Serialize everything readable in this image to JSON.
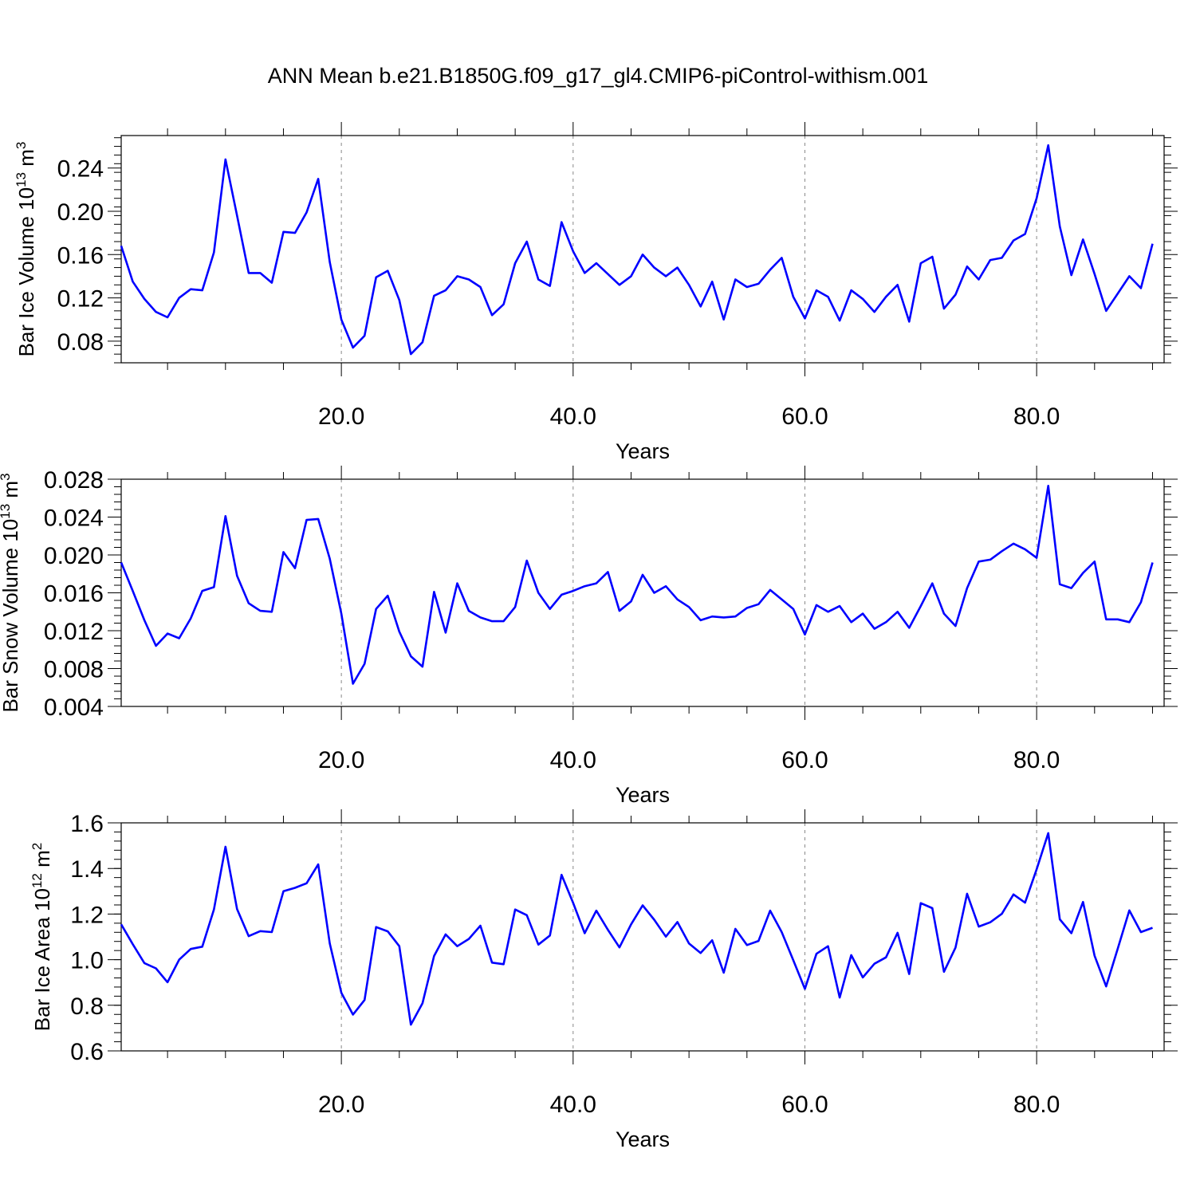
{
  "title": "ANN Mean b.e21.B1850G.f09_g17_gl4.CMIP6-piControl-withism.001",
  "colors": {
    "line": "#0000ff",
    "axis": "#000000",
    "grid": "#888888"
  },
  "chart_data": [
    {
      "type": "line",
      "ylabel": {
        "text": "Bar Ice Volume 10",
        "sup": "13",
        "unit": " m",
        "unit_sup": "3"
      },
      "xlabel": "Years",
      "xlim": [
        1,
        91
      ],
      "ylim": [
        0.06,
        0.27
      ],
      "xticks": [
        20,
        40,
        60,
        80
      ],
      "xtick_labels": [
        "20.0",
        "40.0",
        "60.0",
        "80.0"
      ],
      "yticks": [
        0.08,
        0.12,
        0.16,
        0.2,
        0.24
      ],
      "ytick_labels": [
        "0.08",
        "0.12",
        "0.16",
        "0.20",
        "0.24"
      ],
      "grid": "dashed vertical at x ticks",
      "series": [
        {
          "x_start": 1,
          "values": [
            0.168,
            0.135,
            0.119,
            0.107,
            0.102,
            0.12,
            0.128,
            0.127,
            0.162,
            0.248,
            0.196,
            0.143,
            0.143,
            0.134,
            0.181,
            0.18,
            0.199,
            0.23,
            0.153,
            0.1,
            0.074,
            0.085,
            0.139,
            0.145,
            0.118,
            0.068,
            0.079,
            0.122,
            0.127,
            0.14,
            0.137,
            0.13,
            0.104,
            0.114,
            0.152,
            0.172,
            0.137,
            0.131,
            0.19,
            0.163,
            0.143,
            0.152,
            0.142,
            0.132,
            0.14,
            0.16,
            0.148,
            0.14,
            0.148,
            0.132,
            0.112,
            0.135,
            0.1,
            0.137,
            0.13,
            0.133,
            0.146,
            0.157,
            0.121,
            0.101,
            0.127,
            0.121,
            0.099,
            0.127,
            0.119,
            0.107,
            0.121,
            0.132,
            0.098,
            0.152,
            0.158,
            0.11,
            0.123,
            0.149,
            0.137,
            0.155,
            0.157,
            0.173,
            0.179,
            0.212,
            0.261,
            0.186,
            0.141,
            0.174,
            0.142,
            0.108,
            0.124,
            0.14,
            0.129,
            0.17
          ]
        }
      ]
    },
    {
      "type": "line",
      "ylabel": {
        "text": "Bar Snow Volume 10",
        "sup": "13",
        "unit": " m",
        "unit_sup": "3"
      },
      "xlabel": "Years",
      "xlim": [
        1,
        91
      ],
      "ylim": [
        0.004,
        0.028
      ],
      "xticks": [
        20,
        40,
        60,
        80
      ],
      "xtick_labels": [
        "20.0",
        "40.0",
        "60.0",
        "80.0"
      ],
      "yticks": [
        0.004,
        0.008,
        0.012,
        0.016,
        0.02,
        0.024,
        0.028
      ],
      "ytick_labels": [
        "0.004",
        "0.008",
        "0.012",
        "0.016",
        "0.020",
        "0.024",
        "0.028"
      ],
      "grid": "dashed vertical at x ticks",
      "series": [
        {
          "x_start": 1,
          "values": [
            0.0192,
            0.0162,
            0.0131,
            0.0104,
            0.0117,
            0.0112,
            0.0133,
            0.0162,
            0.0166,
            0.0241,
            0.0178,
            0.0149,
            0.0141,
            0.014,
            0.0203,
            0.0186,
            0.0237,
            0.0238,
            0.0196,
            0.0138,
            0.0064,
            0.0085,
            0.0143,
            0.0157,
            0.0119,
            0.0093,
            0.0082,
            0.0161,
            0.0118,
            0.017,
            0.0141,
            0.0134,
            0.013,
            0.013,
            0.0145,
            0.0194,
            0.016,
            0.0143,
            0.0158,
            0.0162,
            0.0167,
            0.017,
            0.0182,
            0.0141,
            0.0151,
            0.0179,
            0.016,
            0.0167,
            0.0153,
            0.0145,
            0.0131,
            0.0135,
            0.0134,
            0.0135,
            0.0144,
            0.0148,
            0.0163,
            0.0153,
            0.0143,
            0.0116,
            0.0147,
            0.014,
            0.0146,
            0.0129,
            0.0138,
            0.0122,
            0.0129,
            0.014,
            0.0123,
            0.0146,
            0.017,
            0.0138,
            0.0125,
            0.0165,
            0.0193,
            0.0195,
            0.0204,
            0.0212,
            0.0206,
            0.0197,
            0.0273,
            0.0169,
            0.0165,
            0.0181,
            0.0193,
            0.0132,
            0.0132,
            0.0129,
            0.015,
            0.0192
          ]
        }
      ]
    },
    {
      "type": "line",
      "ylabel": {
        "text": "Bar Ice Area 10",
        "sup": "12",
        "unit": " m",
        "unit_sup": "2"
      },
      "xlabel": "Years",
      "xlim": [
        1,
        91
      ],
      "ylim": [
        0.6,
        1.6
      ],
      "xticks": [
        20,
        40,
        60,
        80
      ],
      "xtick_labels": [
        "20.0",
        "40.0",
        "60.0",
        "80.0"
      ],
      "yticks": [
        0.6,
        0.8,
        1.0,
        1.2,
        1.4,
        1.6
      ],
      "ytick_labels": [
        "0.6",
        "0.8",
        "1.0",
        "1.2",
        "1.4",
        "1.6"
      ],
      "grid": "dashed vertical at x ticks",
      "series": [
        {
          "x_start": 1,
          "values": [
            1.155,
            1.068,
            0.985,
            0.962,
            0.901,
            1.0,
            1.047,
            1.057,
            1.22,
            1.495,
            1.222,
            1.103,
            1.125,
            1.121,
            1.3,
            1.315,
            1.335,
            1.418,
            1.071,
            0.855,
            0.759,
            0.823,
            1.143,
            1.124,
            1.059,
            0.715,
            0.809,
            1.016,
            1.111,
            1.059,
            1.091,
            1.149,
            0.987,
            0.98,
            1.22,
            1.195,
            1.066,
            1.106,
            1.372,
            1.249,
            1.116,
            1.215,
            1.131,
            1.054,
            1.155,
            1.238,
            1.175,
            1.101,
            1.165,
            1.071,
            1.029,
            1.085,
            0.943,
            1.135,
            1.064,
            1.082,
            1.215,
            1.121,
            0.998,
            0.872,
            1.026,
            1.059,
            0.834,
            1.02,
            0.922,
            0.982,
            1.01,
            1.118,
            0.937,
            1.248,
            1.226,
            0.947,
            1.053,
            1.289,
            1.145,
            1.164,
            1.201,
            1.286,
            1.25,
            1.396,
            1.555,
            1.177,
            1.116,
            1.253,
            1.017,
            0.883,
            1.049,
            1.216,
            1.121,
            1.14
          ]
        }
      ]
    }
  ]
}
